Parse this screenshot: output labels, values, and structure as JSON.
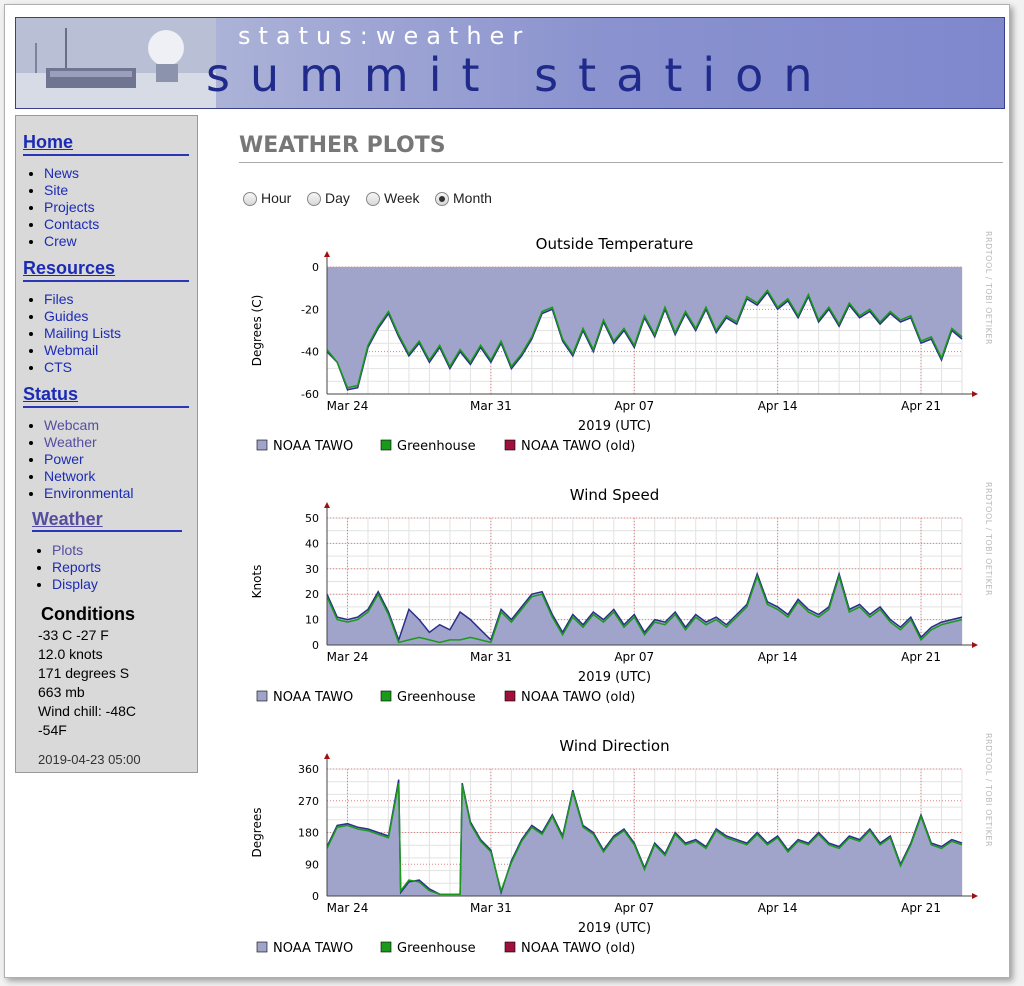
{
  "banner": {
    "subtitle": "status:weather",
    "title": "summit station"
  },
  "sidebar": {
    "home": {
      "heading": "Home",
      "items": [
        "News",
        "Site",
        "Projects",
        "Contacts",
        "Crew"
      ]
    },
    "resources": {
      "heading": "Resources",
      "items": [
        "Files",
        "Guides",
        "Mailing Lists",
        "Webmail",
        "CTS"
      ]
    },
    "status": {
      "heading": "Status",
      "items": [
        "Webcam",
        "Weather",
        "Power",
        "Network",
        "Environmental"
      ]
    },
    "weather": {
      "heading": "Weather",
      "items": [
        "Plots",
        "Reports",
        "Display"
      ]
    },
    "conditions": {
      "heading": "Conditions",
      "lines": [
        "-33 C -27 F",
        "12.0 knots",
        "171 degrees S",
        "663 mb",
        "Wind chill: -48C",
        "-54F"
      ],
      "timestamp": "2019-04-23 05:00"
    }
  },
  "main": {
    "title": "WEATHER PLOTS",
    "ranges": [
      "Hour",
      "Day",
      "Week",
      "Month"
    ],
    "selected_range": "Month"
  },
  "plot_common": {
    "xlabel": "2019 (UTC)",
    "watermark": "RRDTOOL / TOBI OETIKER",
    "legend": [
      "NOAA TAWO",
      "Greenhouse",
      "NOAA TAWO (old)"
    ]
  },
  "colors": {
    "tawo_fill": "#a0a4cb",
    "tawo_line": "#2b2f8a",
    "greenhouse": "#1a9a1a",
    "old": "#a0103c",
    "link": "#1c2bb5",
    "visited": "#554d9f"
  },
  "chart_data": [
    {
      "type": "area",
      "title": "Outside Temperature",
      "xlabel": "2019 (UTC)",
      "ylabel": "Degrees (C)",
      "xlim": [
        0,
        31
      ],
      "ylim": [
        -60,
        0
      ],
      "yticks": [
        0,
        -20,
        -40,
        -60
      ],
      "xticks": [
        "Mar 24",
        "Mar 31",
        "Apr 07",
        "Apr 14",
        "Apr 21"
      ],
      "xtick_pos": [
        1,
        8,
        15,
        22,
        29
      ],
      "fill_baseline": 0,
      "x": [
        0,
        0.5,
        1,
        1.5,
        2,
        2.5,
        3,
        3.5,
        4,
        4.5,
        5,
        5.5,
        6,
        6.5,
        7,
        7.5,
        8,
        8.5,
        9,
        9.5,
        10,
        10.5,
        11,
        11.5,
        12,
        12.5,
        13,
        13.5,
        14,
        14.5,
        15,
        15.5,
        16,
        16.5,
        17,
        17.5,
        18,
        18.5,
        19,
        19.5,
        20,
        20.5,
        21,
        21.5,
        22,
        22.5,
        23,
        23.5,
        24,
        24.5,
        25,
        25.5,
        26,
        26.5,
        27,
        27.5,
        28,
        28.5,
        29,
        29.5,
        30,
        30.5,
        31
      ],
      "series": [
        {
          "name": "NOAA TAWO",
          "values": [
            -40,
            -45,
            -58,
            -57,
            -38,
            -29,
            -22,
            -33,
            -42,
            -36,
            -45,
            -38,
            -48,
            -40,
            -46,
            -38,
            -45,
            -36,
            -48,
            -42,
            -34,
            -22,
            -20,
            -35,
            -42,
            -30,
            -40,
            -26,
            -36,
            -30,
            -38,
            -24,
            -33,
            -20,
            -32,
            -22,
            -30,
            -20,
            -31,
            -24,
            -27,
            -15,
            -18,
            -12,
            -20,
            -16,
            -24,
            -14,
            -26,
            -20,
            -28,
            -18,
            -24,
            -21,
            -27,
            -22,
            -26,
            -24,
            -36,
            -34,
            -44,
            -30,
            -34
          ]
        },
        {
          "name": "Greenhouse",
          "values": [
            -39,
            -45,
            -57,
            -56,
            -37,
            -28,
            -21,
            -32,
            -41,
            -35,
            -44,
            -37,
            -47,
            -39,
            -45,
            -37,
            -44,
            -35,
            -47,
            -41,
            -33,
            -21,
            -19,
            -34,
            -41,
            -29,
            -39,
            -25,
            -35,
            -29,
            -37,
            -23,
            -32,
            -19,
            -31,
            -21,
            -29,
            -19,
            -30,
            -23,
            -26,
            -14,
            -17,
            -11,
            -19,
            -15,
            -23,
            -13,
            -25,
            -19,
            -27,
            -17,
            -23,
            -20,
            -26,
            -21,
            -25,
            -23,
            -35,
            -33,
            -43,
            -29,
            -33
          ]
        }
      ]
    },
    {
      "type": "area",
      "title": "Wind Speed",
      "xlabel": "2019 (UTC)",
      "ylabel": "Knots",
      "xlim": [
        0,
        31
      ],
      "ylim": [
        0,
        50
      ],
      "yticks": [
        50,
        40,
        30,
        20,
        10,
        0
      ],
      "xticks": [
        "Mar 24",
        "Mar 31",
        "Apr 07",
        "Apr 14",
        "Apr 21"
      ],
      "xtick_pos": [
        1,
        8,
        15,
        22,
        29
      ],
      "fill_baseline": 0,
      "x": [
        0,
        0.5,
        1,
        1.5,
        2,
        2.5,
        3,
        3.5,
        4,
        4.5,
        5,
        5.5,
        6,
        6.5,
        7,
        7.5,
        8,
        8.5,
        9,
        9.5,
        10,
        10.5,
        11,
        11.5,
        12,
        12.5,
        13,
        13.5,
        14,
        14.5,
        15,
        15.5,
        16,
        16.5,
        17,
        17.5,
        18,
        18.5,
        19,
        19.5,
        20,
        20.5,
        21,
        21.5,
        22,
        22.5,
        23,
        23.5,
        24,
        24.5,
        25,
        25.5,
        26,
        26.5,
        27,
        27.5,
        28,
        28.5,
        29,
        29.5,
        30,
        30.5,
        31
      ],
      "series": [
        {
          "name": "NOAA TAWO",
          "values": [
            20,
            11,
            10,
            11,
            14,
            21,
            13,
            2,
            14,
            10,
            5,
            8,
            6,
            13,
            10,
            6,
            2,
            14,
            10,
            15,
            20,
            21,
            12,
            5,
            12,
            8,
            13,
            10,
            14,
            8,
            12,
            5,
            10,
            9,
            13,
            7,
            12,
            9,
            11,
            8,
            12,
            16,
            28,
            17,
            15,
            12,
            18,
            14,
            12,
            15,
            28,
            14,
            16,
            12,
            15,
            10,
            7,
            11,
            3,
            7,
            9,
            10,
            11
          ]
        },
        {
          "name": "Greenhouse",
          "values": [
            19,
            10,
            9,
            10,
            13,
            20,
            12,
            1,
            2,
            3,
            2,
            1,
            2,
            2,
            3,
            2,
            1,
            13,
            9,
            14,
            19,
            20,
            11,
            4,
            11,
            7,
            12,
            9,
            13,
            7,
            11,
            4,
            9,
            8,
            12,
            6,
            11,
            8,
            10,
            7,
            11,
            15,
            27,
            16,
            14,
            11,
            17,
            13,
            11,
            14,
            27,
            13,
            15,
            11,
            14,
            9,
            6,
            10,
            2,
            6,
            8,
            9,
            10
          ]
        }
      ]
    },
    {
      "type": "area",
      "title": "Wind Direction",
      "xlabel": "2019 (UTC)",
      "ylabel": "Degrees",
      "xlim": [
        0,
        31
      ],
      "ylim": [
        0,
        360
      ],
      "yticks": [
        360,
        270,
        180,
        90,
        0
      ],
      "xticks": [
        "Mar 24",
        "Mar 31",
        "Apr 07",
        "Apr 14",
        "Apr 21"
      ],
      "xtick_pos": [
        1,
        8,
        15,
        22,
        29
      ],
      "fill_baseline": 0,
      "x": [
        0,
        0.5,
        1,
        1.5,
        2,
        2.5,
        3,
        3.5,
        3.6,
        4,
        4.5,
        5,
        5.5,
        6,
        6.5,
        6.6,
        7,
        7.5,
        8,
        8.5,
        9,
        9.5,
        10,
        10.5,
        11,
        11.5,
        12,
        12.5,
        13,
        13.5,
        14,
        14.5,
        15,
        15.5,
        16,
        16.5,
        17,
        17.5,
        18,
        18.5,
        19,
        19.5,
        20,
        20.5,
        21,
        21.5,
        22,
        22.5,
        23,
        23.5,
        24,
        24.5,
        25,
        25.5,
        26,
        26.5,
        27,
        27.5,
        28,
        28.5,
        29,
        29.5,
        30,
        30.5,
        31
      ],
      "series": [
        {
          "name": "NOAA TAWO",
          "values": [
            140,
            200,
            205,
            195,
            190,
            180,
            170,
            330,
            10,
            40,
            45,
            20,
            5,
            5,
            5,
            320,
            210,
            160,
            130,
            10,
            100,
            160,
            200,
            180,
            230,
            170,
            300,
            200,
            180,
            130,
            170,
            190,
            150,
            80,
            150,
            120,
            180,
            150,
            160,
            140,
            190,
            170,
            160,
            150,
            180,
            150,
            170,
            130,
            160,
            150,
            180,
            150,
            140,
            170,
            160,
            190,
            150,
            170,
            90,
            150,
            230,
            150,
            140,
            160,
            150
          ]
        },
        {
          "name": "Greenhouse",
          "values": [
            135,
            195,
            200,
            190,
            185,
            175,
            165,
            320,
            15,
            45,
            40,
            15,
            5,
            5,
            5,
            315,
            205,
            155,
            125,
            15,
            95,
            155,
            195,
            175,
            225,
            165,
            295,
            195,
            175,
            125,
            165,
            185,
            145,
            75,
            145,
            115,
            175,
            145,
            155,
            135,
            185,
            165,
            155,
            145,
            175,
            145,
            165,
            125,
            155,
            145,
            175,
            145,
            135,
            165,
            155,
            185,
            145,
            165,
            85,
            145,
            225,
            145,
            135,
            155,
            145
          ]
        }
      ]
    }
  ]
}
